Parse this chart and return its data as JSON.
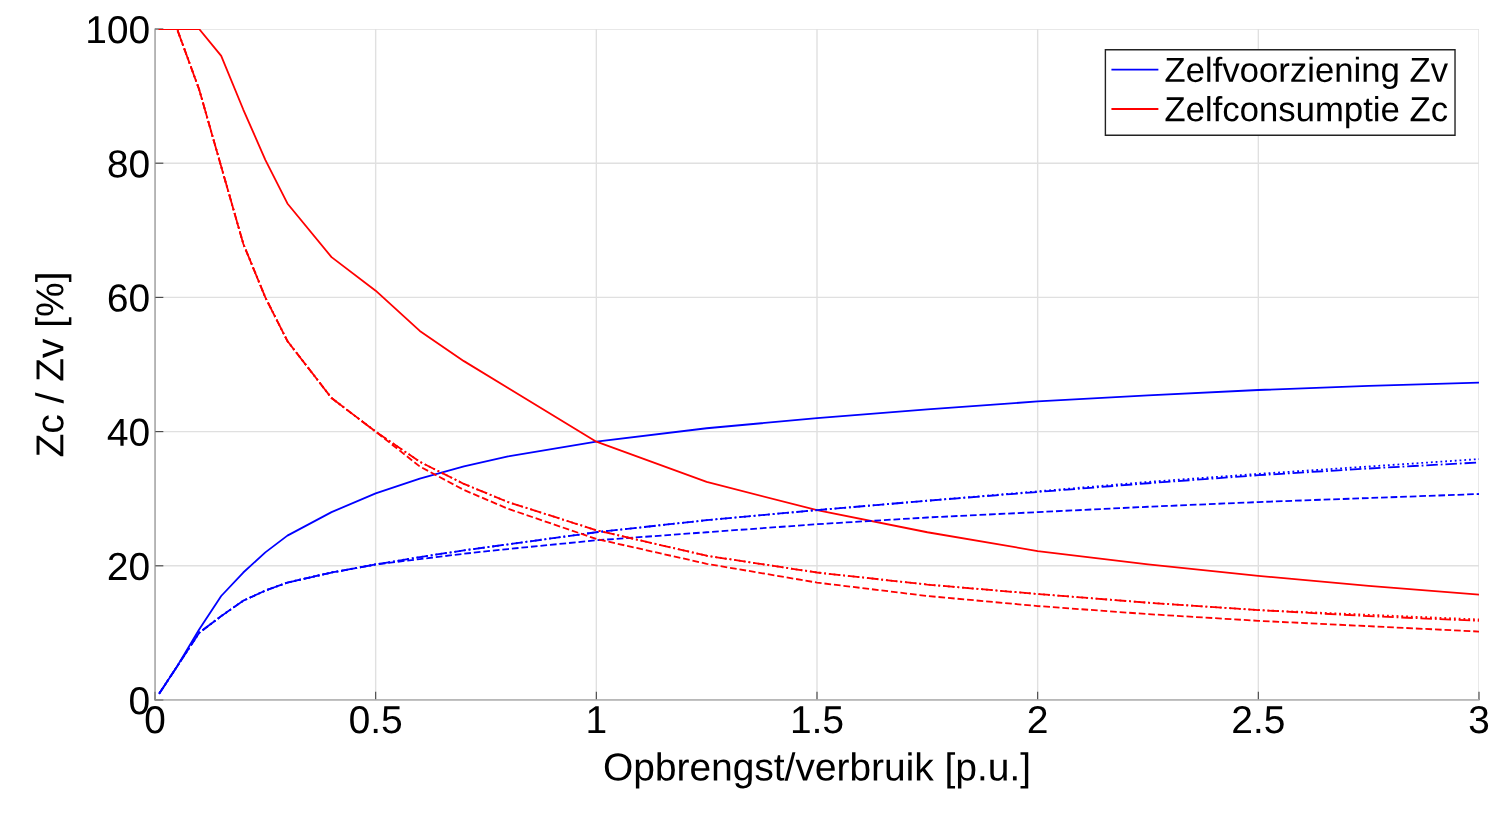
{
  "chart_data": {
    "type": "line",
    "xlabel": "Opbrengst/verbruik [p.u.]",
    "ylabel": "Zc / Zv [%]",
    "x": [
      0.01,
      0.05,
      0.1,
      0.15,
      0.2,
      0.25,
      0.3,
      0.4,
      0.5,
      0.6,
      0.7,
      0.8,
      1,
      1.25,
      1.5,
      1.75,
      2,
      2.25,
      2.5,
      2.75,
      3
    ],
    "series": [
      {
        "name": "Zelfvoorziening Zv",
        "color": "#0000ff",
        "line_style": "solid",
        "values": [
          1,
          5,
          10.5,
          15.5,
          19,
          22,
          24.5,
          28,
          30.8,
          33,
          34.8,
          36.3,
          38.5,
          40.5,
          42,
          43.3,
          44.5,
          45.4,
          46.2,
          46.8,
          47.3
        ]
      },
      {
        "name": "Zelfconsumptie Zc",
        "color": "#ff0000",
        "line_style": "solid",
        "values": [
          100,
          100,
          100,
          96,
          88,
          80.5,
          74,
          66,
          61,
          55,
          50.5,
          46.5,
          38.5,
          32.5,
          28.3,
          25,
          22.2,
          20.2,
          18.5,
          17,
          15.7
        ]
      },
      {
        "color": "#0000ff",
        "line_style": "dashed",
        "values": [
          1,
          5,
          10,
          12.5,
          14.8,
          16.3,
          17.5,
          19,
          20.2,
          21,
          21.8,
          22.5,
          23.8,
          25,
          26.2,
          27.2,
          28,
          28.8,
          29.5,
          30.1,
          30.7
        ]
      },
      {
        "color": "#0000ff",
        "line_style": "dashdot",
        "values": [
          1,
          5,
          10,
          12.5,
          14.8,
          16.3,
          17.5,
          19,
          20.2,
          21.3,
          22.3,
          23.2,
          25,
          26.8,
          28.3,
          29.7,
          31,
          32.3,
          33.5,
          34.5,
          35.4
        ]
      },
      {
        "color": "#0000ff",
        "line_style": "dotted",
        "values": [
          1,
          5,
          10,
          12.5,
          14.8,
          16.3,
          17.5,
          19,
          20.2,
          21.3,
          22.3,
          23.2,
          25,
          26.8,
          28.3,
          29.7,
          31.1,
          32.5,
          33.7,
          34.8,
          35.9
        ]
      },
      {
        "color": "#ff0000",
        "line_style": "dashed",
        "values": [
          100,
          100,
          91,
          79.5,
          68,
          60,
          53.5,
          45,
          40,
          34.8,
          31.3,
          28.5,
          24,
          20.3,
          17.5,
          15.5,
          14,
          12.8,
          11.8,
          11,
          10.2
        ]
      },
      {
        "color": "#ff0000",
        "line_style": "dashdot",
        "values": [
          100,
          100,
          91,
          79.5,
          68,
          60,
          53.5,
          45,
          40,
          35.5,
          32.2,
          29.5,
          25.3,
          21.5,
          19,
          17.2,
          15.8,
          14.5,
          13.4,
          12.5,
          11.8
        ]
      },
      {
        "color": "#ff0000",
        "line_style": "dotted",
        "values": [
          100,
          100,
          91,
          79.5,
          68,
          60,
          53.5,
          45,
          40,
          35.5,
          32.2,
          29.5,
          25.3,
          21.5,
          19,
          17.2,
          15.8,
          14.5,
          13.4,
          12.7,
          12.0
        ]
      }
    ],
    "xlim": [
      0,
      3
    ],
    "xticks": [
      0,
      0.5,
      1,
      1.5,
      2,
      2.5,
      3
    ],
    "ylim": [
      0,
      100
    ],
    "yticks": [
      0,
      20,
      40,
      60,
      80,
      100
    ],
    "grid": true,
    "legend": "top right"
  }
}
